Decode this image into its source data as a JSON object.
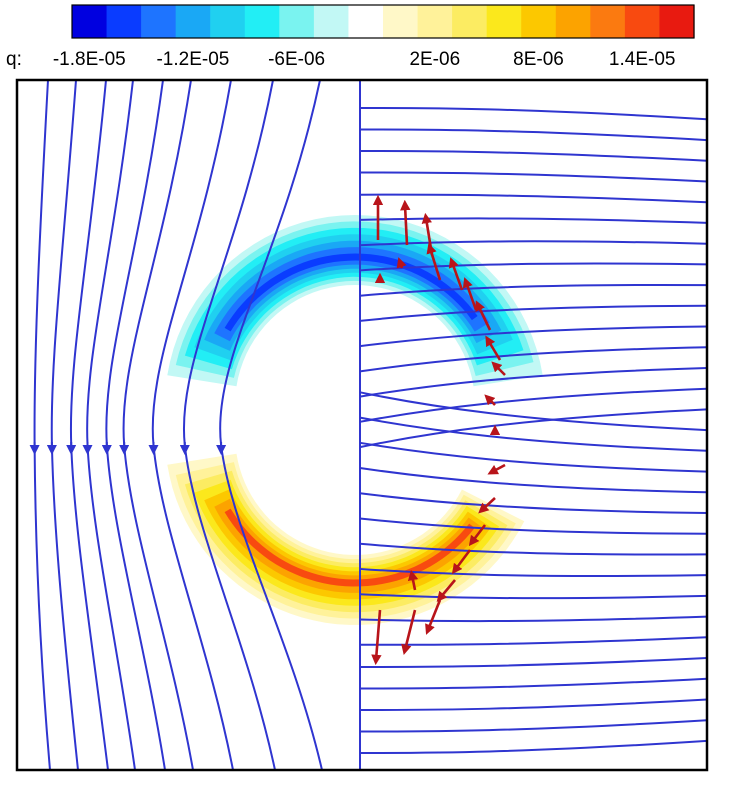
{
  "chart_data": {
    "type": "heatmap",
    "variable_label": "q:",
    "colorbar": {
      "colors": [
        "#0000e0",
        "#0a3cff",
        "#1e74ff",
        "#1aa8f5",
        "#20d0f0",
        "#22eef5",
        "#7af3f0",
        "#c2f8f5",
        "#ffffff",
        "#fff8c8",
        "#fff29a",
        "#fcec62",
        "#fbe81c",
        "#fcc800",
        "#fca300",
        "#fb7a10",
        "#f84a10",
        "#e81a10"
      ],
      "tick_labels": [
        "-1.8E-05",
        "-1.2E-05",
        "-6E-06",
        "2E-06",
        "8E-06",
        "1.4E-05"
      ],
      "range": [
        -1.9e-05,
        1.7e-05
      ]
    },
    "plot": {
      "divider_line": true,
      "negative_lobe": "top",
      "positive_lobe": "bottom",
      "streamline_color": "#2f35d0",
      "arrow_color": "#b8141a",
      "grid": false
    }
  }
}
